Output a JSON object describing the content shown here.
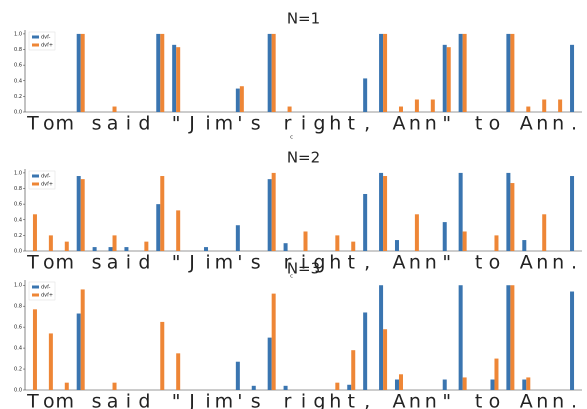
{
  "chart_data": [
    {
      "type": "bar",
      "title": "N=1",
      "x_label": "c",
      "categories": [
        "T",
        "o",
        "m",
        null,
        "s",
        "a",
        "i",
        "d",
        null,
        "\"",
        "J",
        "i",
        "m",
        "'",
        "s",
        null,
        "r",
        "i",
        "g",
        "h",
        "t",
        ",",
        null,
        "A",
        "n",
        "n",
        "\"",
        null,
        "t",
        "o",
        null,
        "A",
        "n",
        "n",
        "."
      ],
      "series": [
        {
          "name": "dvf-",
          "color": "#3a75b0",
          "values": [
            0,
            0,
            0,
            1,
            0,
            0,
            0,
            0,
            1,
            0.86,
            0,
            0,
            0,
            0.3,
            0,
            1,
            0,
            0,
            0,
            0,
            0,
            0.43,
            1,
            0,
            0,
            0,
            0.86,
            1,
            0,
            0,
            1,
            0,
            0,
            0,
            0.86
          ]
        },
        {
          "name": "dvf+",
          "color": "#ee8636",
          "values": [
            0,
            0,
            0,
            1,
            0,
            0.07,
            0,
            0,
            1,
            0.83,
            0,
            0,
            0,
            0.33,
            0,
            1,
            0.07,
            0,
            0,
            0,
            0,
            0,
            1,
            0.07,
            0.16,
            0.16,
            0.83,
            1,
            0,
            0,
            1,
            0.07,
            0.16,
            0.16,
            0
          ]
        }
      ],
      "ylim": [
        0,
        1.05
      ],
      "yticks": [
        {
          "value": 0,
          "label": "0.0"
        },
        {
          "value": 0.2,
          "label": "0.2"
        },
        {
          "value": 0.4,
          "label": "0.4"
        },
        {
          "value": 0.6,
          "label": "0.6"
        },
        {
          "value": 0.8,
          "label": "0.8"
        },
        {
          "value": 1,
          "label": "1.0"
        }
      ],
      "legend": "upper left"
    },
    {
      "type": "bar",
      "title": "N=2",
      "x_label": "c",
      "categories": [
        "T",
        "o",
        "m",
        null,
        "s",
        "a",
        "i",
        "d",
        null,
        "\"",
        "J",
        "i",
        "m",
        "'",
        "s",
        null,
        "r",
        "i",
        "g",
        "h",
        "t",
        ",",
        null,
        "A",
        "n",
        "n",
        "\"",
        null,
        "t",
        "o",
        null,
        "A",
        "n",
        "n",
        "."
      ],
      "series": [
        {
          "name": "dvf-",
          "color": "#3a75b0",
          "values": [
            0,
            0,
            0,
            0.96,
            0.05,
            0.05,
            0.05,
            0,
            0.6,
            0,
            0,
            0.05,
            0,
            0.33,
            0,
            0.92,
            0.1,
            0,
            0,
            0,
            0,
            0.73,
            1,
            0.14,
            0,
            0,
            0.37,
            1,
            0,
            0,
            1,
            0.14,
            0,
            0,
            0.96
          ]
        },
        {
          "name": "dvf+",
          "color": "#ee8636",
          "values": [
            0.47,
            0.2,
            0.12,
            0.92,
            0,
            0.2,
            0,
            0.12,
            0.96,
            0.52,
            0,
            0,
            0,
            0,
            0,
            1,
            0,
            0.25,
            0,
            0.2,
            0.12,
            0,
            0.96,
            0,
            0.47,
            0,
            0,
            0.25,
            0,
            0.2,
            0.87,
            0,
            0.47,
            0,
            0
          ]
        }
      ],
      "ylim": [
        0,
        1.05
      ],
      "yticks": [
        {
          "value": 0,
          "label": "0.0"
        },
        {
          "value": 0.2,
          "label": "0.2"
        },
        {
          "value": 0.4,
          "label": "0.4"
        },
        {
          "value": 0.6,
          "label": "0.6"
        },
        {
          "value": 0.8,
          "label": "0.8"
        },
        {
          "value": 1,
          "label": "1.0"
        }
      ],
      "legend": "upper left"
    },
    {
      "type": "bar",
      "title": "N=3",
      "x_label": "c",
      "categories": [
        "T",
        "o",
        "m",
        null,
        "s",
        "a",
        "i",
        "d",
        null,
        "\"",
        "J",
        "i",
        "m",
        "'",
        "s",
        null,
        "r",
        "i",
        "g",
        "h",
        "t",
        ",",
        null,
        "A",
        "n",
        "n",
        "\"",
        null,
        "t",
        "o",
        null,
        "A",
        "n",
        "n",
        "."
      ],
      "series": [
        {
          "name": "dvf-",
          "color": "#3a75b0",
          "values": [
            0,
            0,
            0,
            0.73,
            0,
            0,
            0,
            0,
            0,
            0,
            0,
            0,
            0,
            0.27,
            0.04,
            0.5,
            0.04,
            0,
            0,
            0,
            0.05,
            0.74,
            1,
            0.1,
            0,
            0,
            0.1,
            1,
            0,
            0.1,
            1,
            0.1,
            0,
            0,
            0.94
          ]
        },
        {
          "name": "dvf+",
          "color": "#ee8636",
          "values": [
            0.77,
            0.54,
            0.07,
            0.96,
            0,
            0.07,
            0,
            0,
            0.65,
            0.35,
            0,
            0,
            0,
            0,
            0,
            0.92,
            0,
            0,
            0,
            0.07,
            0.38,
            0,
            0.58,
            0.15,
            0,
            0,
            0,
            0.12,
            0,
            0.3,
            1,
            0.12,
            0,
            0,
            0
          ]
        }
      ],
      "ylim": [
        0,
        1.05
      ],
      "yticks": [
        {
          "value": 0,
          "label": "0.0"
        },
        {
          "value": 0.2,
          "label": "0.2"
        },
        {
          "value": 0.4,
          "label": "0.4"
        },
        {
          "value": 0.6,
          "label": "0.6"
        },
        {
          "value": 0.8,
          "label": "0.8"
        },
        {
          "value": 1,
          "label": "1.0"
        }
      ],
      "legend": "upper left"
    }
  ]
}
